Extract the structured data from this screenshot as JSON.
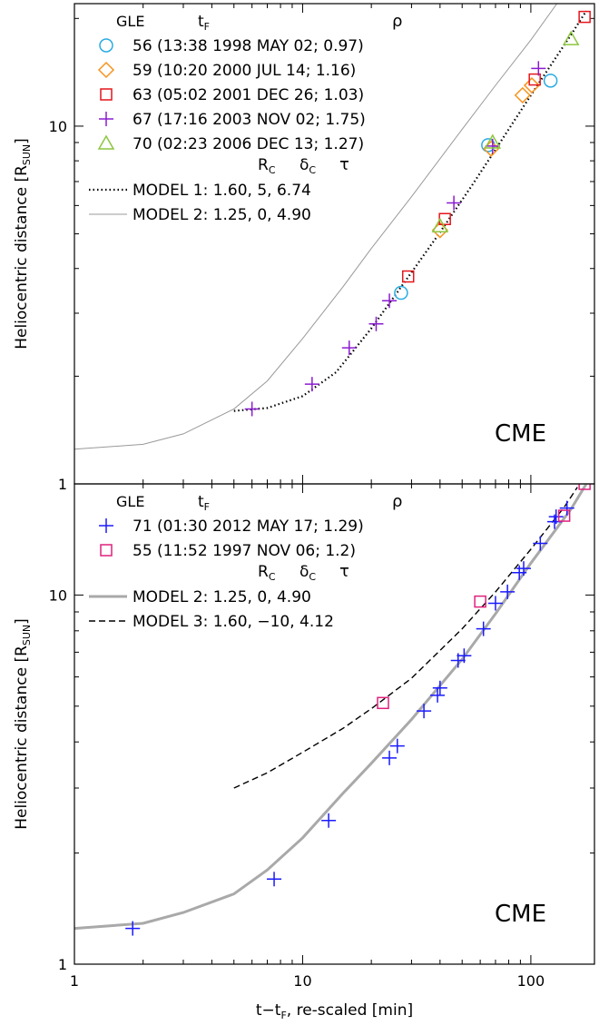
{
  "figure": {
    "shared_xlabel": "t−t",
    "shared_xlabel_sub": "F",
    "shared_xlabel_suffix": ", re-scaled [min]"
  },
  "chart_data": [
    {
      "type": "scatter",
      "panel": "top",
      "annotation": "CME",
      "xscale": "log",
      "yscale": "log",
      "xlim": [
        1,
        190
      ],
      "ylim": [
        1,
        22
      ],
      "xticks": [
        {
          "v": 1,
          "label": "1"
        },
        {
          "v": 10,
          "label": "10"
        },
        {
          "v": 100,
          "label": "100"
        }
      ],
      "yticks": [
        {
          "v": 1,
          "label": "1"
        },
        {
          "v": 10,
          "label": "10"
        }
      ],
      "ylabel": "Heliocentric distance [R",
      "ylabel_sub": "SUN",
      "ylabel_end": "]",
      "legend": {
        "head_gle": "GLE",
        "head_tf": "t",
        "head_tf_sub": "F",
        "head_rho": "ρ",
        "head_rc": "R",
        "head_rc_sub": "C",
        "head_dc": "δ",
        "head_dc_sub": "C",
        "head_tau": "τ"
      },
      "series": [
        {
          "name": "56 (13:38  1998 MAY 02; 0.97)",
          "marker": "circle",
          "color": "#29abe2",
          "points": [
            [
              27,
              3.42
            ],
            [
              65,
              8.85
            ],
            [
              122,
              13.4
            ]
          ]
        },
        {
          "name": "59 (10:20  2000 JUL 14; 1.16)",
          "marker": "diamond",
          "color": "#f7931e",
          "points": [
            [
              40,
              5.12
            ],
            [
              67,
              8.65
            ],
            [
              92,
              12.2
            ],
            [
              101,
              13.0
            ]
          ]
        },
        {
          "name": "63 (05:02  2001 DEC 26; 1.03)",
          "marker": "square",
          "color": "#e4161c",
          "points": [
            [
              29,
              3.8
            ],
            [
              42,
              5.5
            ],
            [
              104,
              13.5
            ],
            [
              172,
              20.2
            ]
          ]
        },
        {
          "name": "67 (17:16  2003 NOV 02; 1.75)",
          "marker": "plus",
          "color": "#8b1bd0",
          "points": [
            [
              6,
              1.62
            ],
            [
              11,
              1.9
            ],
            [
              16,
              2.4
            ],
            [
              21,
              2.8
            ],
            [
              24,
              3.25
            ],
            [
              46,
              6.1
            ],
            [
              68,
              8.8
            ],
            [
              108,
              14.5
            ]
          ]
        },
        {
          "name": "70 (02:23  2006 DEC 13; 1.27)",
          "marker": "triangle",
          "color": "#8cc63f",
          "points": [
            [
              40,
              5.25
            ],
            [
              68,
              9.0
            ],
            [
              150,
              17.5
            ]
          ]
        }
      ],
      "models": [
        {
          "name": "MODEL 1: 1.60,  5,  6.74",
          "style": "dotted",
          "color": "#000000",
          "points": [
            [
              5,
              1.6
            ],
            [
              7,
              1.63
            ],
            [
              10,
              1.76
            ],
            [
              14,
              2.05
            ],
            [
              20,
              2.72
            ],
            [
              30,
              3.9
            ],
            [
              40,
              5.05
            ],
            [
              55,
              6.8
            ],
            [
              70,
              8.6
            ],
            [
              100,
              12.2
            ],
            [
              150,
              18.0
            ],
            [
              175,
              21.0
            ]
          ]
        },
        {
          "name": "MODEL 2: 1.25,  0,  4.90",
          "style": "solid-thin",
          "color": "#999999",
          "points": [
            [
              1,
              1.25
            ],
            [
              2,
              1.29
            ],
            [
              3,
              1.38
            ],
            [
              5,
              1.62
            ],
            [
              7,
              1.94
            ],
            [
              10,
              2.55
            ],
            [
              15,
              3.55
            ],
            [
              20,
              4.55
            ],
            [
              30,
              6.35
            ],
            [
              50,
              9.8
            ],
            [
              70,
              13.0
            ],
            [
              100,
              17.4
            ],
            [
              130,
              22.0
            ]
          ]
        }
      ]
    },
    {
      "type": "scatter",
      "panel": "bottom",
      "annotation": "CME",
      "xscale": "log",
      "yscale": "log",
      "xlim": [
        1,
        190
      ],
      "ylim": [
        1,
        20
      ],
      "xticks": [
        {
          "v": 1,
          "label": "1"
        },
        {
          "v": 10,
          "label": "10"
        },
        {
          "v": 100,
          "label": "100"
        }
      ],
      "yticks": [
        {
          "v": 1,
          "label": "1"
        },
        {
          "v": 10,
          "label": "10"
        }
      ],
      "ylabel": "Heliocentric distance [R",
      "ylabel_sub": "SUN",
      "ylabel_end": "]",
      "legend": {
        "head_gle": "GLE",
        "head_tf": "t",
        "head_tf_sub": "F",
        "head_rho": "ρ",
        "head_rc": "R",
        "head_rc_sub": "C",
        "head_dc": "δ",
        "head_dc_sub": "C",
        "head_tau": "τ"
      },
      "series": [
        {
          "name": "71 (01:30  2012 MAY 17; 1.29)",
          "marker": "plus",
          "color": "#1a1aff",
          "points": [
            [
              1.8,
              1.25
            ],
            [
              7.5,
              1.7
            ],
            [
              13,
              2.45
            ],
            [
              24,
              3.62
            ],
            [
              26,
              3.9
            ],
            [
              34,
              4.85
            ],
            [
              39,
              5.35
            ],
            [
              40,
              5.6
            ],
            [
              48,
              6.65
            ],
            [
              51,
              6.85
            ],
            [
              62,
              8.1
            ],
            [
              70,
              9.5
            ],
            [
              79,
              10.2
            ],
            [
              89,
              11.5
            ],
            [
              93,
              11.8
            ],
            [
              110,
              13.8
            ],
            [
              127,
              15.8
            ],
            [
              129,
              16.3
            ],
            [
              144,
              17.2
            ]
          ]
        },
        {
          "name": "55 (11:52  1997 NOV 06; 1.2)",
          "marker": "square",
          "color": "#e0207d",
          "points": [
            [
              22.5,
              5.1
            ],
            [
              60,
              9.6
            ],
            [
              140,
              16.4
            ],
            [
              172,
              20.0
            ]
          ]
        }
      ],
      "models": [
        {
          "name": "MODEL 2: 1.25,       0,  4.90",
          "style": "solid-thick",
          "color": "#a9a9a9",
          "points": [
            [
              1,
              1.25
            ],
            [
              2,
              1.29
            ],
            [
              3,
              1.38
            ],
            [
              5,
              1.55
            ],
            [
              7,
              1.8
            ],
            [
              10,
              2.2
            ],
            [
              15,
              2.9
            ],
            [
              20,
              3.5
            ],
            [
              30,
              4.6
            ],
            [
              50,
              6.7
            ],
            [
              70,
              8.9
            ],
            [
              100,
              12.2
            ],
            [
              150,
              17.1
            ],
            [
              175,
              20.0
            ]
          ]
        },
        {
          "name": "MODEL 3: 1.60, −10,  4.12",
          "style": "dashed",
          "color": "#000000",
          "points": [
            [
              5,
              3.0
            ],
            [
              7,
              3.3
            ],
            [
              10,
              3.75
            ],
            [
              15,
              4.35
            ],
            [
              20,
              4.92
            ],
            [
              30,
              5.95
            ],
            [
              50,
              8.1
            ],
            [
              70,
              10.2
            ],
            [
              100,
              13.3
            ],
            [
              140,
              17.3
            ],
            [
              160,
              19.6
            ]
          ]
        }
      ]
    }
  ]
}
